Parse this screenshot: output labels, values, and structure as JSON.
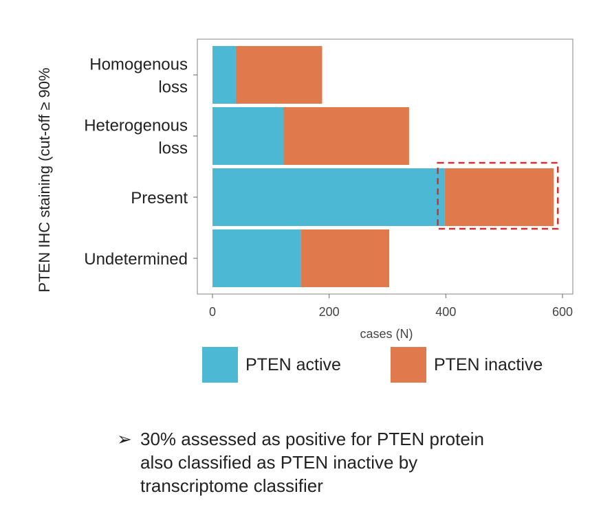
{
  "chart_data": {
    "type": "bar",
    "orientation": "horizontal",
    "stacked": true,
    "categories": [
      [
        "Homogenous",
        "loss"
      ],
      [
        "Heterogenous",
        "loss"
      ],
      [
        "Present"
      ],
      [
        "Undetermined"
      ]
    ],
    "series": [
      {
        "name": "PTEN active",
        "color": "#4db8d4",
        "values": [
          40,
          122,
          398,
          152
        ]
      },
      {
        "name": "PTEN inactive",
        "color": "#e0794b",
        "values": [
          148,
          215,
          187,
          151
        ]
      }
    ],
    "xlabel": "cases (N)",
    "ylabel": "PTEN IHC staining (cut-off ≥ 90%",
    "xlim": [
      -15,
      615
    ],
    "xticks": [
      0,
      200,
      400,
      600
    ],
    "grid": false,
    "legend_position": "bottom",
    "highlight": {
      "category": "Present",
      "series": "PTEN inactive",
      "style": "dashed",
      "color": "#d03030"
    }
  },
  "note": {
    "bullet": "➢",
    "lines": [
      "30% assessed as positive for PTEN protein",
      "also classified as PTEN inactive by",
      "transcriptome classifier"
    ]
  }
}
